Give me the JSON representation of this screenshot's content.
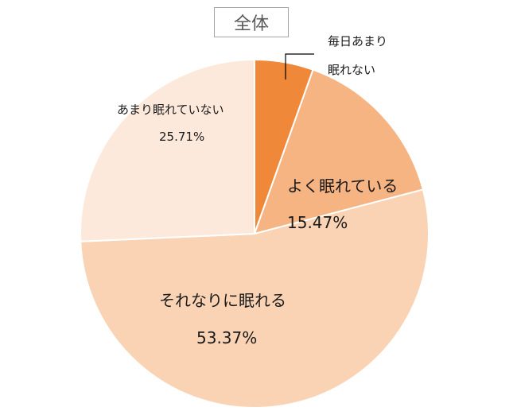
{
  "chart_data": {
    "type": "pie",
    "title": "全体",
    "start_angle_deg": 0,
    "direction": "clockwise",
    "slices": [
      {
        "label": "毎日あまり眠れない",
        "value": 5.45,
        "color": "#f0883a",
        "value_label": ""
      },
      {
        "label": "よく眠れている",
        "value": 15.47,
        "color": "#f5b482",
        "value_label": "15.47%"
      },
      {
        "label": "それなりに眠れる",
        "value": 53.37,
        "color": "#fad3b4",
        "value_label": "53.37%"
      },
      {
        "label": "あまり眠れていない",
        "value": 25.71,
        "color": "#fde9db",
        "value_label": "25.71%"
      }
    ]
  },
  "labels": {
    "daily_line1": "毎日あまり",
    "daily_line2": "眠れない",
    "well_name": "よく眠れている",
    "well_pct": "15.47%",
    "fair_name": "それなりに眠れる",
    "fair_pct": "53.37%",
    "poor_name": "あまり眠れていない",
    "poor_pct": "25.71%"
  }
}
